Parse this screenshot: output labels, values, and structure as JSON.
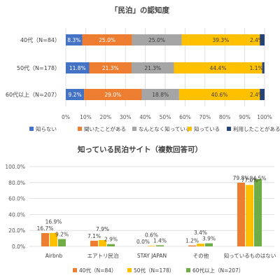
{
  "chart_data": [
    {
      "type": "bar",
      "orientation": "horizontal",
      "stacked": "percent",
      "title": "「民泊」の認知度",
      "categories": [
        "40代（N=84）",
        "50代（N=178）",
        "60代以上（N=207）"
      ],
      "series": [
        {
          "name": "知らない",
          "color": "#4472c4",
          "values": [
            8.3,
            11.8,
            9.2
          ],
          "labels": [
            "8.3%",
            "11.8%",
            "9.2%"
          ]
        },
        {
          "name": "聞いたことがある",
          "color": "#ed7d31",
          "values": [
            25.0,
            21.3,
            29.0
          ],
          "labels": [
            "25.0%",
            "21.3%",
            "29.0%"
          ]
        },
        {
          "name": "なんとなく知っている",
          "color": "#a5a5a5",
          "values": [
            25.0,
            21.3,
            18.8
          ],
          "labels": [
            "25.0%",
            "21.3%",
            "18.8%"
          ]
        },
        {
          "name": "知っている",
          "color": "#ffc000",
          "values": [
            39.3,
            44.4,
            40.6
          ],
          "labels": [
            "39.3%",
            "44.4%",
            "40.6%"
          ]
        },
        {
          "name": "利用したことがある",
          "color": "#264478",
          "values": [
            2.4,
            1.1,
            2.4
          ],
          "labels": [
            "2.4%",
            "1.1%",
            "2.4%"
          ]
        }
      ],
      "x_ticks": [
        "0%",
        "10%",
        "20%",
        "30%",
        "40%",
        "50%",
        "60%",
        "70%",
        "80%",
        "90%",
        "100%"
      ],
      "xlim": [
        0,
        100
      ],
      "grid": true,
      "legend": "bottom"
    },
    {
      "type": "bar",
      "orientation": "vertical",
      "title": "知っている民泊サイト（複数回答可）",
      "categories": [
        "Airbnb",
        "エアトリ民泊",
        "STAY JAPAN",
        "その他",
        "知っているものはない"
      ],
      "series": [
        {
          "name": "40代（N=84）",
          "color": "#ed7d31",
          "values": [
            16.7,
            7.1,
            0.0,
            1.2,
            79.8
          ],
          "labels": [
            "16.7%",
            "7.1%",
            "0.0%",
            "1.2%",
            "79.8%"
          ]
        },
        {
          "name": "50代（N=178）",
          "color": "#ffc000",
          "values": [
            16.9,
            7.9,
            0.6,
            3.4,
            77.0
          ],
          "labels": [
            "16.9%",
            "7.9%",
            "0.6%",
            "3.4%",
            "77.0%"
          ]
        },
        {
          "name": "60代以上（N=207）",
          "color": "#70ad47",
          "values": [
            9.2,
            2.9,
            1.4,
            3.9,
            84.5
          ],
          "labels": [
            "9.2%",
            "2.9%",
            "1.4%",
            "3.9%",
            "84.5%"
          ]
        }
      ],
      "y_ticks": [
        "0.0%",
        "20.0%",
        "40.0%",
        "60.0%",
        "80.0%",
        "100.0%"
      ],
      "ylim": [
        0,
        100
      ],
      "grid": true,
      "legend": "bottom"
    }
  ]
}
